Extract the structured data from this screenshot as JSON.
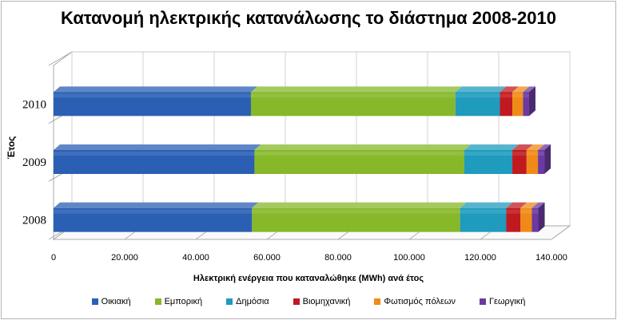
{
  "chart_data": {
    "type": "bar",
    "orientation": "horizontal",
    "stacked": true,
    "three_d": true,
    "title": "Κατανομή ηλεκτρικής κατανάλωσης το διάστημα 2008-2010",
    "xlabel": "Ηλεκτρική ενέργεια που καταναλώθηκε  (MWh) ανά έτος",
    "ylabel": "Έτος",
    "categories": [
      "2010",
      "2009",
      "2008"
    ],
    "xlim": [
      0,
      140000
    ],
    "x_ticks": [
      "0",
      "20.000",
      "40.000",
      "60.000",
      "80.000",
      "100.000",
      "120.000",
      "140.000"
    ],
    "grid": true,
    "legend_position": "bottom",
    "series": [
      {
        "name": "Οικιακή",
        "color": "#2a5fb4",
        "values": [
          55500,
          56500,
          55800
        ]
      },
      {
        "name": "Εμπορική",
        "color": "#86b82a",
        "values": [
          57500,
          59000,
          58500
        ]
      },
      {
        "name": "Δημόσια",
        "color": "#1f9bbd",
        "values": [
          12500,
          13500,
          13000
        ]
      },
      {
        "name": "Βιομηχανική",
        "color": "#c0191f",
        "values": [
          3500,
          4000,
          4000
        ]
      },
      {
        "name": "Φωτισμός πόλεων",
        "color": "#f08a16",
        "values": [
          3000,
          3200,
          3200
        ]
      },
      {
        "name": "Γεωργική",
        "color": "#6a3aa0",
        "values": [
          1700,
          1800,
          1800
        ]
      }
    ]
  }
}
